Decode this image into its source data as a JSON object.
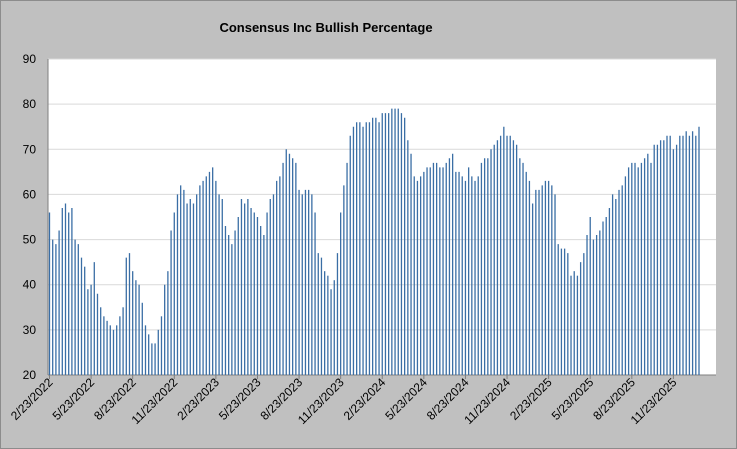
{
  "chart_data": {
    "type": "bar",
    "title": "Consensus Inc Bullish Percentage",
    "xlabel": "",
    "ylabel": "",
    "ylim": [
      20,
      90
    ],
    "yticks": [
      20,
      30,
      40,
      50,
      60,
      70,
      80,
      90
    ],
    "grid": true,
    "legend": "none",
    "bar_color": "#3a6ea5",
    "plot_background": "#ffffff",
    "background": "#c0c0c0",
    "x_tick_labels": [
      "2/23/2022",
      "5/23/2022",
      "8/23/2022",
      "11/23/2022",
      "2/23/2023",
      "5/23/2023",
      "8/23/2023",
      "11/23/2023",
      "2/23/2024",
      "5/23/2024",
      "8/23/2024",
      "11/23/2024",
      "2/23/2025",
      "5/23/2025",
      "8/23/2025",
      "11/23/2025"
    ],
    "x_start": "2/23/2022",
    "frequency": "weekly",
    "values": [
      56,
      50,
      49,
      52,
      57,
      58,
      56,
      57,
      50,
      49,
      46,
      44,
      39,
      40,
      45,
      38,
      35,
      33,
      32,
      31,
      30,
      31,
      33,
      35,
      46,
      47,
      43,
      41,
      40,
      36,
      31,
      29,
      27,
      27,
      30,
      33,
      40,
      43,
      52,
      56,
      60,
      62,
      61,
      58,
      59,
      58,
      60,
      62,
      63,
      64,
      65,
      66,
      63,
      60,
      59,
      53,
      51,
      49,
      52,
      55,
      59,
      58,
      59,
      57,
      56,
      55,
      53,
      51,
      56,
      59,
      60,
      63,
      64,
      67,
      70,
      69,
      68,
      67,
      61,
      60,
      61,
      61,
      60,
      56,
      47,
      46,
      43,
      42,
      39,
      41,
      47,
      56,
      62,
      67,
      73,
      75,
      76,
      76,
      75,
      76,
      76,
      77,
      77,
      76,
      78,
      78,
      78,
      79,
      79,
      79,
      78,
      77,
      72,
      69,
      64,
      63,
      64,
      65,
      66,
      66,
      67,
      67,
      66,
      66,
      67,
      68,
      69,
      65,
      65,
      64,
      63,
      66,
      64,
      63,
      64,
      67,
      68,
      68,
      70,
      71,
      72,
      73,
      75,
      73,
      73,
      72,
      71,
      68,
      67,
      65,
      63,
      58,
      61,
      61,
      62,
      63,
      63,
      62,
      60,
      49,
      48,
      48,
      47,
      42,
      43,
      42,
      45,
      47,
      51,
      55,
      50,
      51,
      52,
      54,
      55,
      57,
      60,
      59,
      61,
      62,
      64,
      66,
      67,
      67,
      66,
      67,
      68,
      69,
      67,
      71,
      71,
      72,
      72,
      73,
      73,
      70,
      71,
      73,
      73,
      74,
      73,
      74,
      73,
      75
    ]
  }
}
